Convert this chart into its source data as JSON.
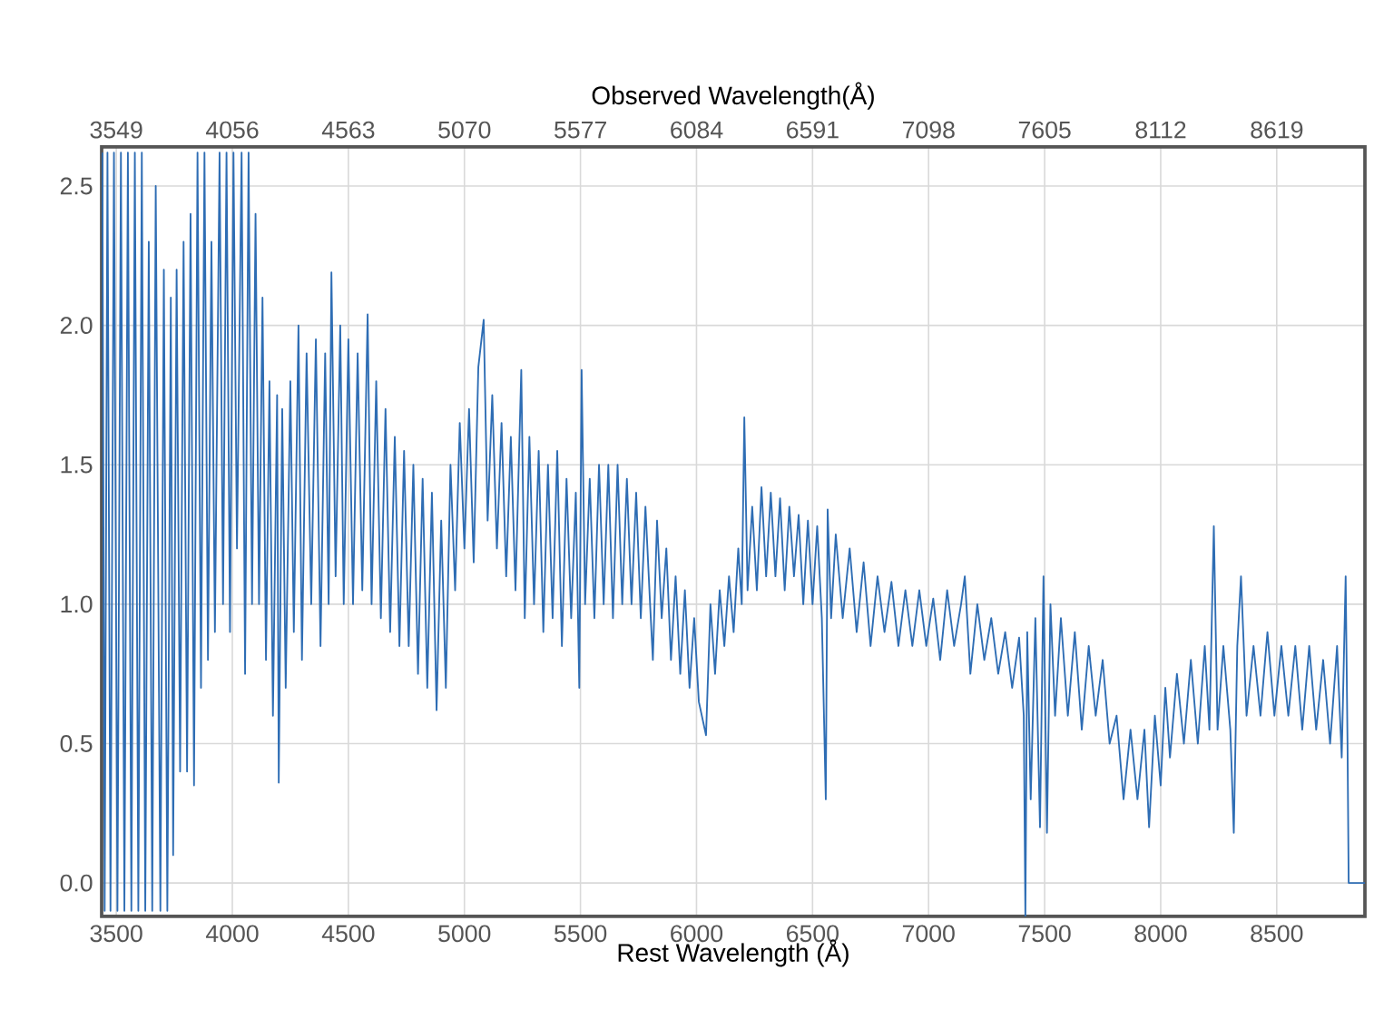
{
  "chart_data": {
    "type": "line",
    "xlabel": "Rest Wavelength (Å)",
    "x2label": "Observed Wavelength(Å)",
    "color": "#2e6db4",
    "grid": true,
    "line_style": "solid",
    "xlim": [
      3437,
      8880
    ],
    "ylim": [
      -0.12,
      2.64
    ],
    "x2lim": [
      3485,
      9004
    ],
    "xticks": [
      3500,
      4000,
      4500,
      5000,
      5500,
      6000,
      6500,
      7000,
      7500,
      8000,
      8500
    ],
    "x2ticks": [
      3549,
      4056,
      4563,
      5070,
      5577,
      6084,
      6591,
      7098,
      7605,
      8112,
      8619
    ],
    "yticks": [
      {
        "value": 0,
        "label": "0.0"
      },
      {
        "value": 0.5,
        "label": "0.5"
      },
      {
        "value": 1,
        "label": "1.0"
      },
      {
        "value": 1.5,
        "label": "1.5"
      },
      {
        "value": 2,
        "label": "2.0"
      },
      {
        "value": 2.5,
        "label": "2.5"
      }
    ],
    "x": [
      3440,
      3450,
      3462,
      3475,
      3490,
      3505,
      3520,
      3535,
      3550,
      3565,
      3580,
      3595,
      3610,
      3625,
      3640,
      3655,
      3670,
      3690,
      3705,
      3720,
      3735,
      3745,
      3760,
      3775,
      3790,
      3805,
      3820,
      3835,
      3850,
      3865,
      3880,
      3895,
      3910,
      3925,
      3945,
      3960,
      3975,
      3990,
      4005,
      4020,
      4040,
      4055,
      4070,
      4085,
      4100,
      4115,
      4130,
      4145,
      4160,
      4175,
      4193,
      4200,
      4215,
      4230,
      4250,
      4265,
      4285,
      4300,
      4320,
      4340,
      4360,
      4380,
      4400,
      4415,
      4427,
      4445,
      4465,
      4480,
      4500,
      4520,
      4540,
      4560,
      4583,
      4600,
      4620,
      4640,
      4660,
      4680,
      4700,
      4720,
      4740,
      4760,
      4780,
      4800,
      4820,
      4840,
      4860,
      4880,
      4900,
      4920,
      4940,
      4960,
      4980,
      5000,
      5020,
      5040,
      5060,
      5083,
      5100,
      5120,
      5140,
      5160,
      5180,
      5200,
      5220,
      5245,
      5260,
      5280,
      5300,
      5320,
      5340,
      5360,
      5380,
      5400,
      5420,
      5440,
      5460,
      5480,
      5495,
      5505,
      5520,
      5540,
      5560,
      5580,
      5600,
      5620,
      5640,
      5660,
      5680,
      5700,
      5720,
      5740,
      5760,
      5780,
      5800,
      5812,
      5830,
      5850,
      5870,
      5890,
      5910,
      5930,
      5950,
      5970,
      5990,
      6010,
      6041,
      6060,
      6080,
      6100,
      6120,
      6140,
      6160,
      6180,
      6195,
      6206,
      6220,
      6240,
      6260,
      6280,
      6300,
      6320,
      6340,
      6360,
      6380,
      6400,
      6420,
      6440,
      6460,
      6480,
      6500,
      6520,
      6540,
      6557,
      6565,
      6580,
      6600,
      6630,
      6660,
      6690,
      6720,
      6750,
      6780,
      6810,
      6840,
      6870,
      6900,
      6930,
      6960,
      6990,
      7020,
      7050,
      7080,
      7110,
      7140,
      7156,
      7180,
      7210,
      7240,
      7270,
      7300,
      7330,
      7360,
      7390,
      7410,
      7417,
      7425,
      7440,
      7460,
      7480,
      7495,
      7510,
      7525,
      7545,
      7570,
      7600,
      7630,
      7660,
      7690,
      7720,
      7750,
      7780,
      7810,
      7840,
      7870,
      7900,
      7930,
      7950,
      7975,
      8000,
      8020,
      8040,
      8070,
      8100,
      8130,
      8160,
      8190,
      8210,
      8229,
      8245,
      8270,
      8300,
      8315,
      8330,
      8346,
      8370,
      8400,
      8430,
      8460,
      8490,
      8520,
      8550,
      8580,
      8610,
      8640,
      8670,
      8700,
      8730,
      8760,
      8780,
      8797,
      8805,
      8810,
      8880
    ],
    "values": [
      2.62,
      -0.1,
      2.62,
      -0.1,
      2.62,
      -0.1,
      2.62,
      -0.1,
      2.62,
      -0.1,
      2.62,
      -0.1,
      2.62,
      -0.1,
      2.3,
      -0.1,
      2.5,
      -0.1,
      2.2,
      -0.1,
      2.1,
      0.1,
      2.2,
      0.4,
      2.3,
      0.4,
      2.4,
      0.35,
      2.62,
      0.7,
      2.62,
      0.8,
      2.3,
      0.9,
      2.62,
      1.0,
      2.62,
      0.9,
      2.62,
      1.2,
      2.62,
      0.75,
      2.62,
      1.0,
      2.4,
      1.0,
      2.1,
      0.8,
      1.8,
      0.6,
      1.75,
      0.36,
      1.7,
      0.7,
      1.8,
      0.9,
      2.0,
      0.8,
      1.9,
      1.0,
      1.95,
      0.85,
      1.9,
      1.0,
      2.19,
      1.1,
      2.0,
      1.0,
      1.95,
      1.0,
      1.9,
      1.05,
      2.04,
      1.0,
      1.8,
      0.95,
      1.7,
      0.9,
      1.6,
      0.85,
      1.55,
      0.85,
      1.5,
      0.75,
      1.45,
      0.7,
      1.4,
      0.62,
      1.3,
      0.7,
      1.5,
      1.05,
      1.65,
      1.2,
      1.7,
      1.15,
      1.85,
      2.02,
      1.3,
      1.75,
      1.2,
      1.65,
      1.1,
      1.6,
      1.05,
      1.84,
      0.95,
      1.6,
      1.0,
      1.55,
      0.9,
      1.5,
      0.95,
      1.55,
      0.85,
      1.45,
      0.95,
      1.4,
      0.7,
      1.84,
      1.0,
      1.45,
      0.95,
      1.5,
      1.0,
      1.5,
      0.95,
      1.5,
      1.0,
      1.45,
      1.0,
      1.4,
      0.95,
      1.35,
      1.0,
      0.8,
      1.3,
      0.95,
      1.2,
      0.8,
      1.1,
      0.75,
      1.05,
      0.7,
      0.95,
      0.65,
      0.53,
      1.0,
      0.75,
      1.05,
      0.85,
      1.1,
      0.9,
      1.2,
      1.0,
      1.67,
      1.05,
      1.35,
      1.05,
      1.42,
      1.1,
      1.4,
      1.1,
      1.38,
      1.05,
      1.35,
      1.1,
      1.32,
      1.0,
      1.3,
      1.0,
      1.28,
      0.95,
      0.3,
      1.34,
      0.95,
      1.25,
      0.95,
      1.2,
      0.9,
      1.15,
      0.85,
      1.1,
      0.9,
      1.08,
      0.85,
      1.05,
      0.85,
      1.05,
      0.85,
      1.02,
      0.8,
      1.05,
      0.85,
      1.0,
      1.1,
      0.75,
      1.0,
      0.8,
      0.95,
      0.75,
      0.9,
      0.7,
      0.88,
      0.6,
      -0.12,
      0.9,
      0.3,
      0.95,
      0.2,
      1.1,
      0.18,
      1.0,
      0.6,
      0.95,
      0.6,
      0.9,
      0.55,
      0.85,
      0.6,
      0.8,
      0.5,
      0.6,
      0.3,
      0.55,
      0.3,
      0.55,
      0.2,
      0.6,
      0.35,
      0.7,
      0.45,
      0.75,
      0.5,
      0.8,
      0.5,
      0.85,
      0.55,
      1.28,
      0.55,
      0.85,
      0.55,
      0.18,
      0.85,
      1.1,
      0.6,
      0.85,
      0.6,
      0.9,
      0.6,
      0.85,
      0.6,
      0.85,
      0.55,
      0.85,
      0.55,
      0.8,
      0.5,
      0.85,
      0.45,
      1.1,
      0.5,
      0.0,
      0.0
    ]
  }
}
